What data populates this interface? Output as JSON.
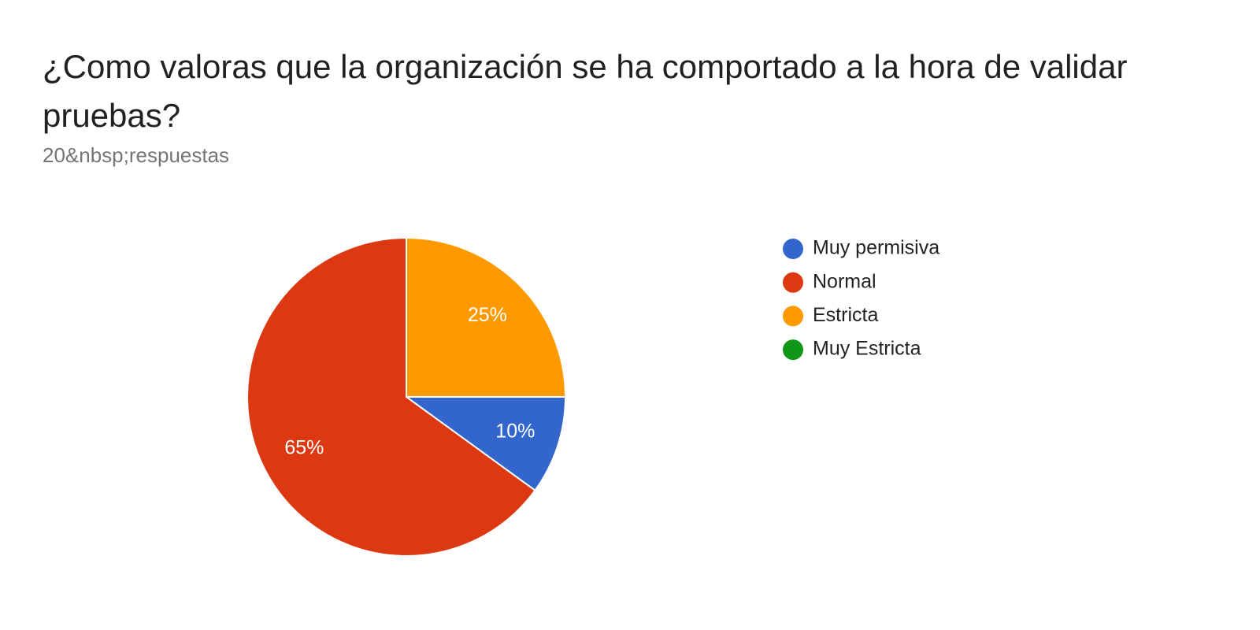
{
  "chart_data": {
    "type": "pie",
    "title": "¿Como valoras que la organización se ha comportado a la hora de validar pruebas?",
    "subtitle": "20&nbsp;respuestas",
    "categories": [
      "Muy permisiva",
      "Normal",
      "Estricta",
      "Muy Estricta"
    ],
    "values": [
      10,
      65,
      25,
      0
    ],
    "value_labels": [
      "10%",
      "65%",
      "25%",
      null
    ],
    "colors": [
      "#3366cc",
      "#dc3912",
      "#ff9900",
      "#109618"
    ],
    "legend": "right"
  }
}
